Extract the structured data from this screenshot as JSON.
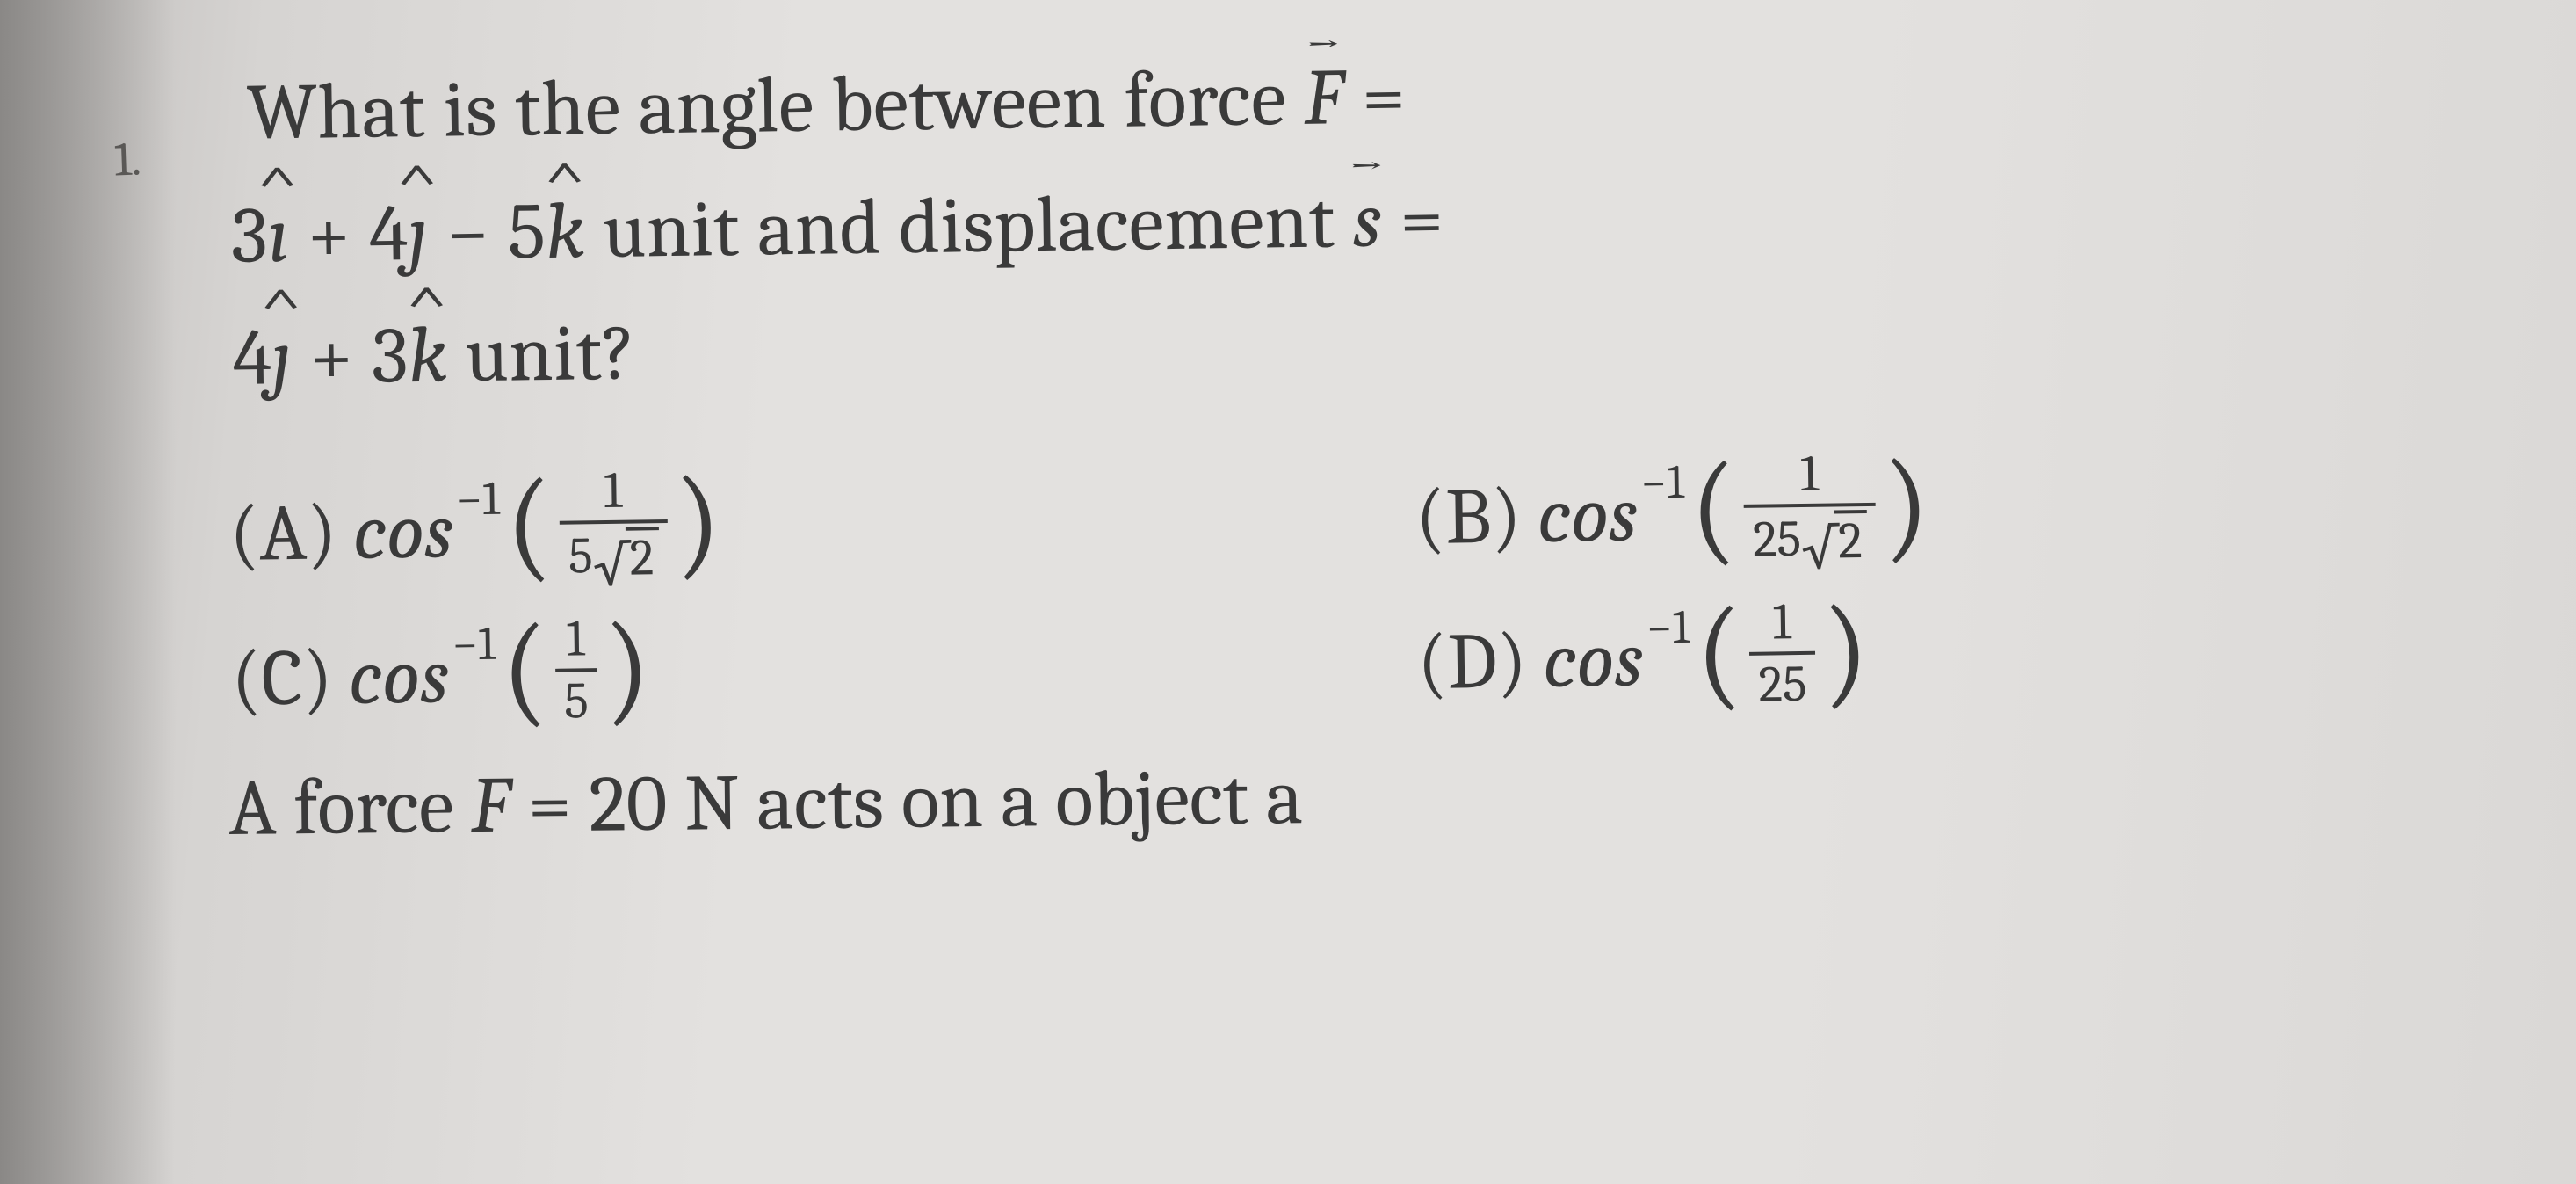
{
  "question_number": "1.",
  "stem": {
    "line1_a": "What is the angle between force ",
    "line1_force_sym": "F",
    "line1_b": " =",
    "line2_a": "3",
    "line2_b": " + 4",
    "line2_c": " − 5",
    "line2_d": " unit and displacement ",
    "line2_s_sym": "s",
    "line2_e": " =",
    "line3_a": "4",
    "line3_b": " + 3",
    "line3_c": " unit?",
    "ihat": "ı",
    "jhat": "ȷ",
    "khat": "k"
  },
  "cos_label": "cos",
  "minus1": "−1",
  "options": {
    "A": {
      "label": "(A)",
      "num": "1",
      "den_coef": "5",
      "den_rad": "2"
    },
    "B": {
      "label": "(B)",
      "num": "1",
      "den_coef": "25",
      "den_rad": "2"
    },
    "C": {
      "label": "(C)",
      "num": "1",
      "den_plain": "5"
    },
    "D": {
      "label": "(D)",
      "num": "1",
      "den_plain": "25"
    }
  },
  "tail": {
    "a": "A force ",
    "Fsym": "F",
    "b": " = 20 N acts on a object a"
  },
  "colors": {
    "text": "#3a3a3a",
    "bg": "#e3e1df"
  }
}
